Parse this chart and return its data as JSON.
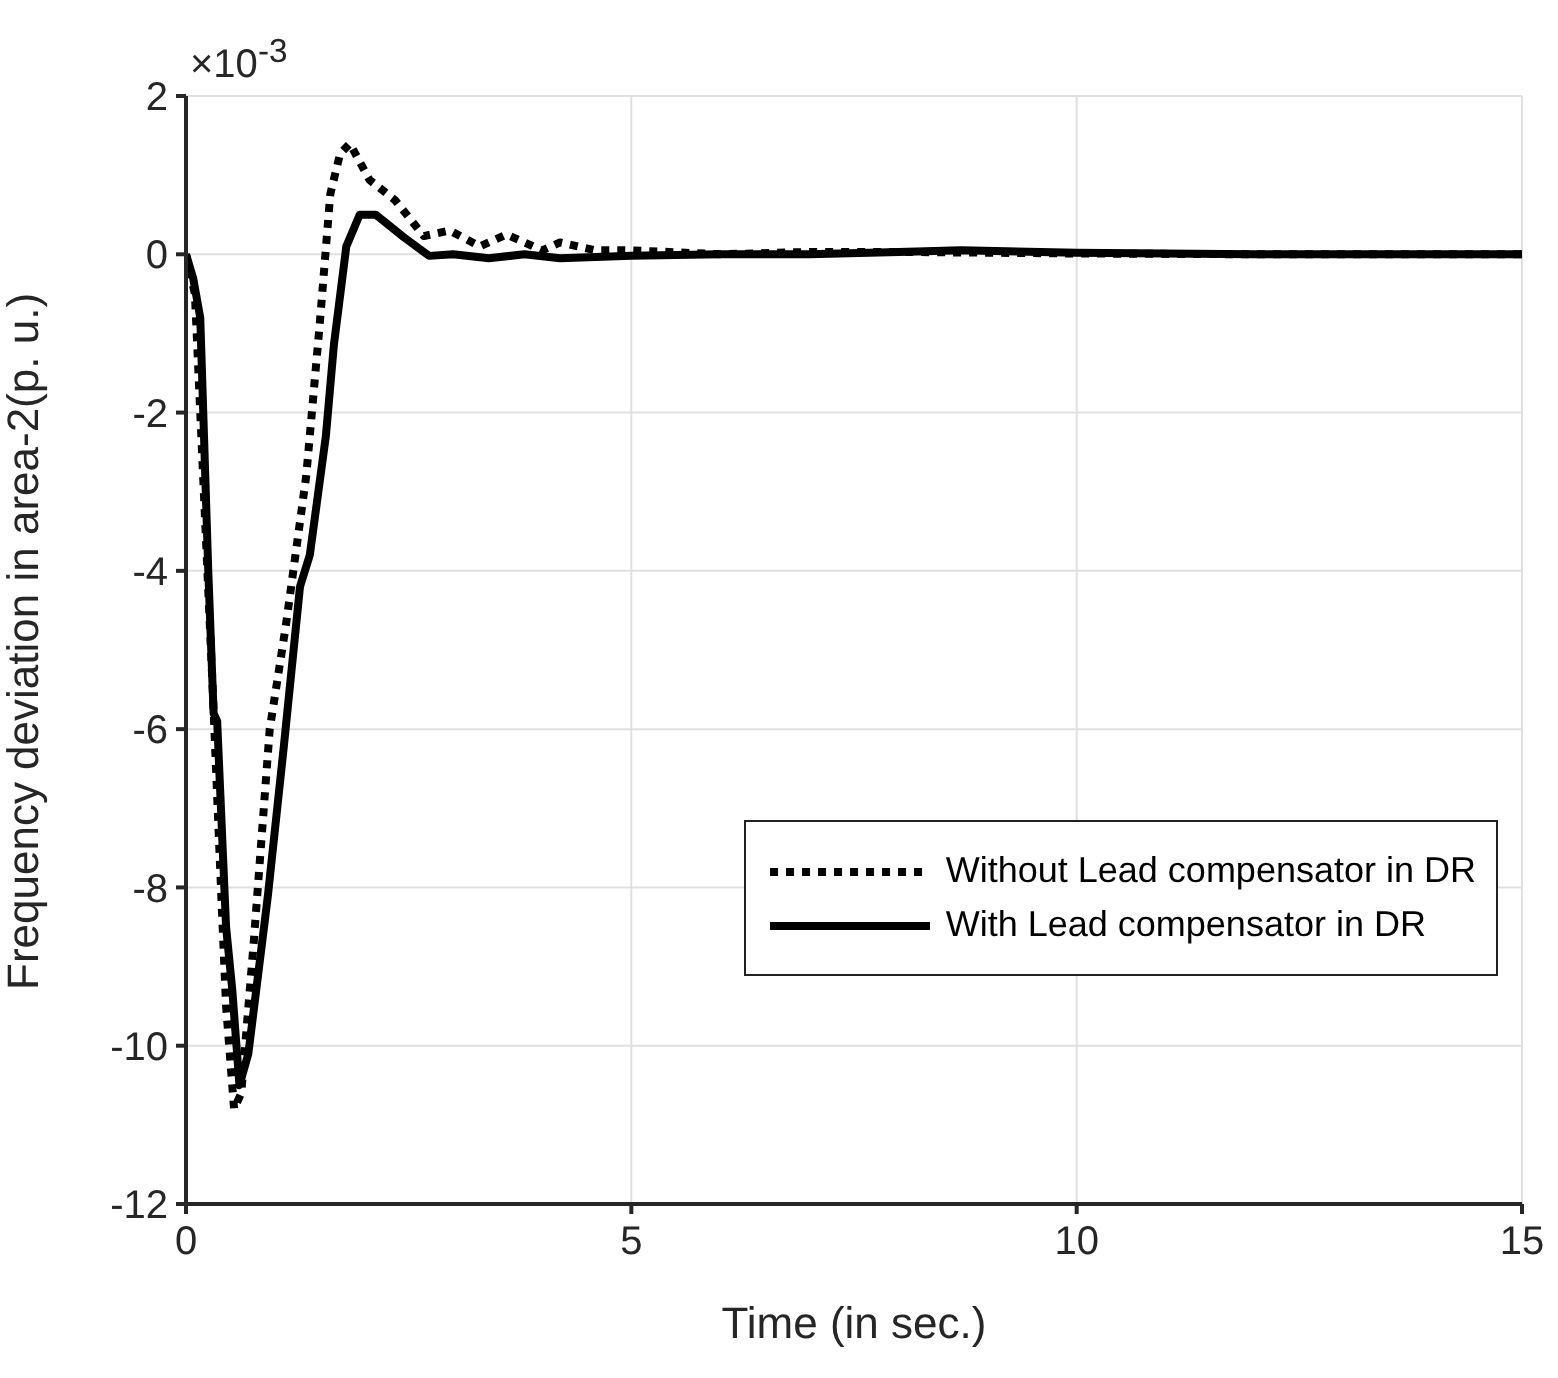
{
  "chart_data": {
    "type": "line",
    "xlabel": "Time (in sec.)",
    "ylabel": "Frequency deviation in area-2(p. u.)",
    "annotations": [
      "×10$^{-3}$"
    ],
    "xlim": [
      0,
      15
    ],
    "xticks": [
      0,
      5,
      10,
      15
    ],
    "ylim": [
      -12,
      2
    ],
    "yticks": [
      -12,
      -10,
      -8,
      -6,
      -4,
      -2,
      0,
      2
    ],
    "grid": true,
    "legend": "right",
    "marker": "none",
    "series": [
      {
        "name": "Without Lead compensator in DR",
        "color": "#000000",
        "line_style": "dotted",
        "x": [
          0,
          0.1,
          0.2,
          0.3,
          0.4,
          0.45,
          0.54,
          0.62,
          0.76,
          0.94,
          1.12,
          1.35,
          1.5,
          1.62,
          1.73,
          1.84,
          2.06,
          2.35,
          2.67,
          2.96,
          3.3,
          3.6,
          4,
          4.2,
          4.6,
          5,
          6,
          7,
          8,
          9,
          10,
          12,
          15
        ],
        "values": [
          0,
          -0.5,
          -3,
          -5.5,
          -8.2,
          -9.5,
          -10.8,
          -10.6,
          -8.7,
          -6,
          -4.7,
          -2.8,
          -0.9,
          0.76,
          1.27,
          1.4,
          0.94,
          0.68,
          0.23,
          0.3,
          0.1,
          0.25,
          0.05,
          0.15,
          0.05,
          0.05,
          0,
          0.03,
          0.03,
          0.02,
          0.01,
          0,
          0
        ]
      },
      {
        "name": "With Lead compensator in DR",
        "color": "#000000",
        "line_style": "solid",
        "x": [
          0,
          0.08,
          0.16,
          0.25,
          0.31,
          0.35,
          0.45,
          0.52,
          0.6,
          0.7,
          0.92,
          1.1,
          1.28,
          1.39,
          1.57,
          1.66,
          1.8,
          1.95,
          2.13,
          2.44,
          2.73,
          3,
          3.4,
          3.8,
          4.2,
          5,
          6,
          7,
          8,
          8.7,
          10,
          12,
          15
        ],
        "values": [
          0,
          -0.3,
          -0.8,
          -4,
          -5.8,
          -5.9,
          -8.5,
          -9.3,
          -10.5,
          -10.1,
          -8.1,
          -6.2,
          -4.2,
          -3.8,
          -2.3,
          -1.15,
          0.1,
          0.5,
          0.5,
          0.22,
          -0.02,
          0,
          -0.05,
          0,
          -0.05,
          -0.02,
          0,
          0,
          0.03,
          0.05,
          0.02,
          0,
          0
        ]
      }
    ]
  }
}
